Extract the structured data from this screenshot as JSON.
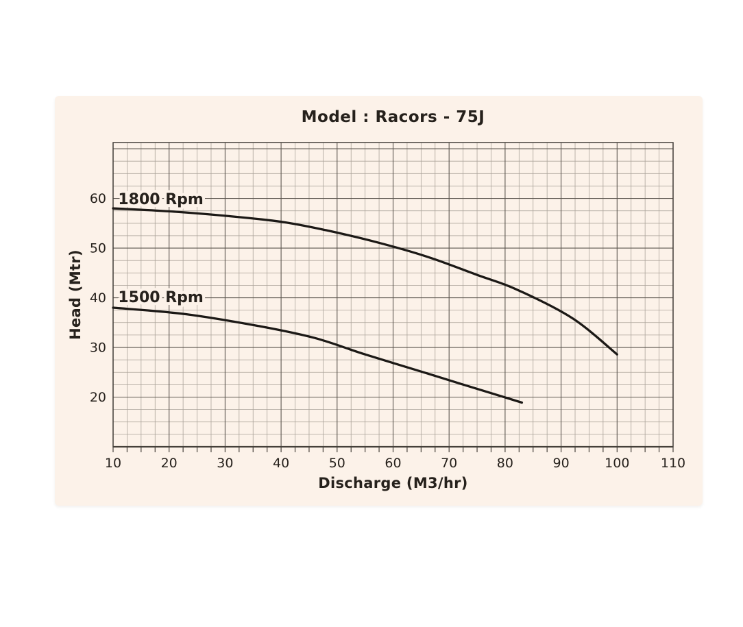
{
  "page": {
    "background": "#ffffff"
  },
  "chart_data": {
    "type": "line",
    "title": "Model : Racors - 75J",
    "xlabel": "Discharge (M3/hr)",
    "ylabel": "Head (Mtr)",
    "xlim": [
      10,
      110
    ],
    "ylim": [
      10,
      71.25
    ],
    "x_ticks": [
      10,
      20,
      30,
      40,
      50,
      60,
      70,
      80,
      90,
      100,
      110
    ],
    "y_ticks": [
      20,
      30,
      40,
      50,
      60
    ],
    "minor_step": 2.5,
    "major_step": 10,
    "grid": "minor and major gridlines on",
    "legend_position": "inline curve labels, upper-left of each curve",
    "series": [
      {
        "name": "1800 Rpm",
        "label_anchor": {
          "x": 10.9,
          "y": 58.8
        },
        "points": [
          [
            10,
            58.0
          ],
          [
            20,
            57.4
          ],
          [
            30,
            56.5
          ],
          [
            40,
            55.3
          ],
          [
            48,
            53.6
          ],
          [
            57,
            51.2
          ],
          [
            66,
            48.3
          ],
          [
            75,
            44.6
          ],
          [
            82,
            41.7
          ],
          [
            92,
            35.9
          ],
          [
            100,
            28.6
          ]
        ]
      },
      {
        "name": "1500 Rpm",
        "label_anchor": {
          "x": 10.9,
          "y": 39.1
        },
        "points": [
          [
            10,
            38.0
          ],
          [
            23,
            36.7
          ],
          [
            36,
            34.3
          ],
          [
            46,
            31.9
          ],
          [
            55,
            28.6
          ],
          [
            66,
            24.8
          ],
          [
            72,
            22.7
          ],
          [
            83,
            18.9
          ]
        ]
      }
    ],
    "colors": {
      "panel_background": "#fcf2e9",
      "page_background": "#ffffff",
      "curve": "#1c1916",
      "grid_minor": "#aaa299",
      "grid_major": "#5b554e",
      "axis": "#45403a",
      "text": "#26211c"
    }
  }
}
